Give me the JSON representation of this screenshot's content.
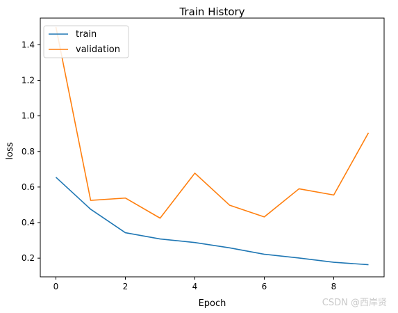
{
  "chart_data": {
    "type": "line",
    "title": "Train History",
    "xlabel": "Epoch",
    "ylabel": "loss",
    "x": [
      0,
      1,
      2,
      3,
      4,
      5,
      6,
      7,
      8,
      9
    ],
    "series": [
      {
        "name": "train",
        "color": "#1f77b4",
        "values": [
          0.655,
          0.475,
          0.343,
          0.308,
          0.288,
          0.258,
          0.222,
          0.201,
          0.177,
          0.163
        ]
      },
      {
        "name": "validation",
        "color": "#ff7f0e",
        "values": [
          1.5,
          0.525,
          0.538,
          0.425,
          0.678,
          0.498,
          0.432,
          0.59,
          0.555,
          0.905
        ]
      }
    ],
    "xlim": [
      -0.45,
      9.45
    ],
    "ylim": [
      0.095,
      1.55
    ],
    "xticks": [
      0,
      2,
      4,
      6,
      8
    ],
    "xtick_labels": [
      "0",
      "2",
      "4",
      "6",
      "8"
    ],
    "yticks": [
      0.2,
      0.4,
      0.6,
      0.8,
      1.0,
      1.2,
      1.4
    ],
    "ytick_labels": [
      "0.2",
      "0.4",
      "0.6",
      "0.8",
      "1.0",
      "1.2",
      "1.4"
    ],
    "legend_position": "top-left",
    "grid": false
  },
  "watermark": "CSDN @西岸贤"
}
